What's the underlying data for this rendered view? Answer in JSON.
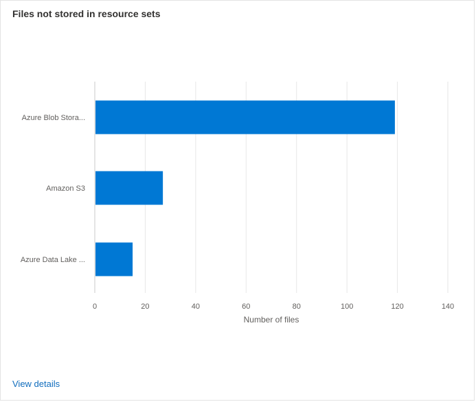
{
  "card": {
    "title": "Files not stored in resource sets",
    "link_label": "View details"
  },
  "colors": {
    "bar": "#0078d4",
    "gridline": "#e6e6e6",
    "axis": "#c8c8c8",
    "tick_text": "#605e5c",
    "link": "#0f6cbd"
  },
  "chart_data": {
    "type": "bar",
    "orientation": "horizontal",
    "title": "Files not stored in resource sets",
    "categories": [
      "Azure Blob Stora...",
      "Amazon S3",
      "Azure Data Lake ..."
    ],
    "values": [
      119,
      27,
      15
    ],
    "xlabel": "Number of files",
    "ylabel": "",
    "xlim": [
      0,
      140
    ],
    "xticks": [
      0,
      20,
      40,
      60,
      80,
      100,
      120,
      140
    ],
    "grid": true,
    "legend": "none"
  }
}
